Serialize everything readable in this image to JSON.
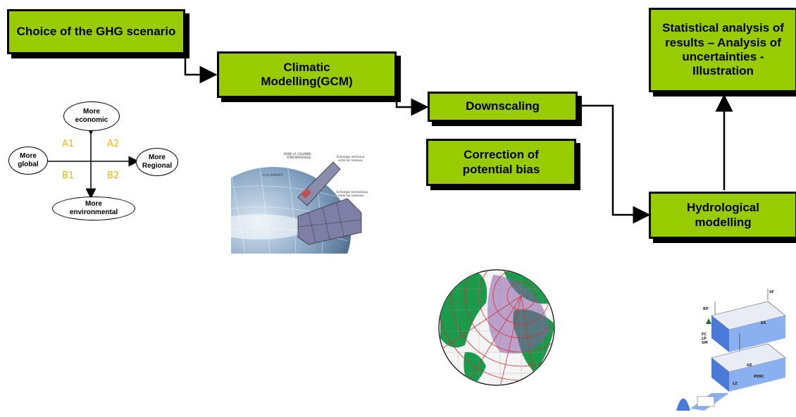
{
  "boxes": {
    "ghg": "Choice of the GHG scenario",
    "gcm": "Climatic Modelling(GCM)",
    "downscaling": "Downscaling",
    "bias": "Correction of potential bias",
    "stats": "Statistical analysis of results – Analysis of uncertainties - Illustration",
    "hydro": "Hydrological modelling"
  },
  "scenario_diagram": {
    "top": "More economic",
    "left": "More global",
    "right": "More Regional",
    "bottom": "More environmental",
    "q_a1": "A1",
    "q_a2": "A2",
    "q_b1": "B1",
    "q_b2": "B2"
  },
  "colors": {
    "box_fill": "#99cc00",
    "quadrant_text": "#f0b400"
  },
  "illustrations": {
    "gcm_image": "earth-gcm-grid-illustration",
    "globe_image": "regional-grid-globe",
    "hydro_image": "hydrological-model-schematic"
  }
}
